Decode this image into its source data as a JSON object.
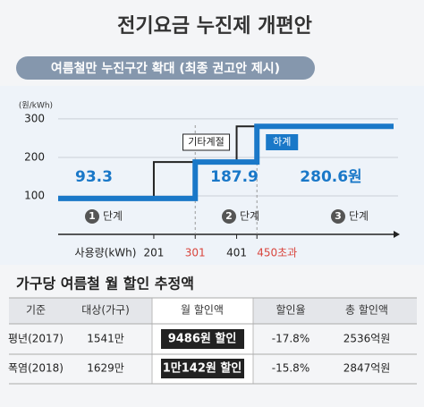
{
  "title": "전기요금 누진제 개편안",
  "subtitle": "여름철만 누진구간 확대 (최종 권고안 제시)",
  "chart_data": {
    "type": "step",
    "y_label": "(원/kWh)",
    "x_label": "사용량(kWh)",
    "values": [
      93.3,
      187.9,
      280.6
    ],
    "value_labels": [
      "93.3",
      "187.9",
      "280.6원"
    ],
    "tiers": [
      {
        "number": "1",
        "text": "단계"
      },
      {
        "number": "2",
        "text": "단계"
      },
      {
        "number": "3",
        "text": "단계"
      }
    ],
    "series": [
      {
        "name": "기타계절",
        "color": "#222222",
        "breaks": [
          201,
          401
        ]
      },
      {
        "name": "하계",
        "color": "#1a78c8",
        "breaks": [
          301,
          450
        ]
      }
    ],
    "xlim": [
      -30,
      780
    ],
    "xticks": [
      201,
      301,
      401,
      {
        "value": 450,
        "label": "450초과"
      }
    ],
    "ylim": [
      0,
      330
    ],
    "yticks": [
      100,
      200,
      300
    ],
    "grid": true
  },
  "table": {
    "title": "가구당 여름철 월 할인 추정액",
    "header": [
      "기준",
      "대상(가구)",
      "월 할인액",
      "할인율",
      "총 할인액"
    ],
    "rows": [
      [
        "평년(2017)",
        "1541만",
        "9486원 할인",
        "-17.8%",
        "2536억원"
      ],
      [
        "폭염(2018)",
        "1629만",
        "1만142원 할인",
        "-15.8%",
        "2847억원"
      ]
    ]
  }
}
